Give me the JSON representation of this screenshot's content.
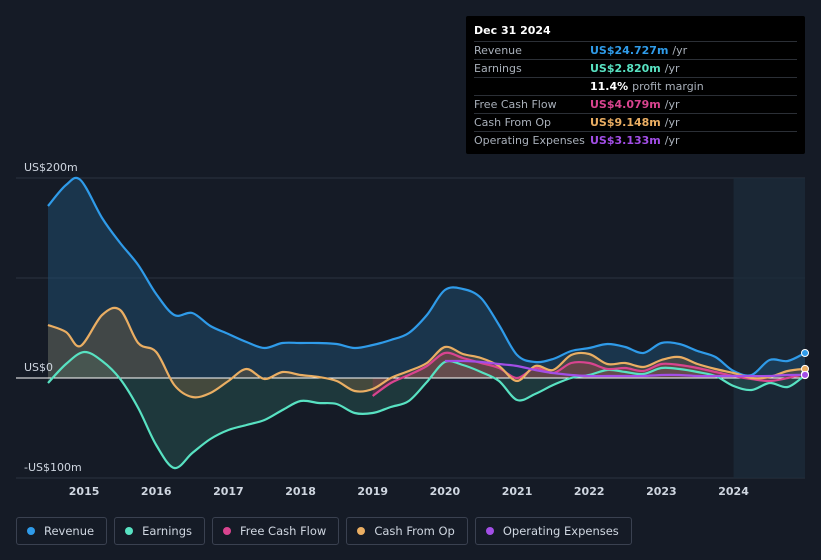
{
  "tooltip": {
    "date": "Dec 31 2024",
    "rows": [
      {
        "label": "Revenue",
        "value": "US$24.727m",
        "unit": "/yr",
        "color": "#2f9be9"
      },
      {
        "label": "Earnings",
        "value": "US$2.820m",
        "unit": "/yr",
        "color": "#58e2c2"
      },
      {
        "label": "",
        "value": "11.4%",
        "unit": "profit margin",
        "color": "#ffffff"
      },
      {
        "label": "Free Cash Flow",
        "value": "US$4.079m",
        "unit": "/yr",
        "color": "#d9448f"
      },
      {
        "label": "Cash From Op",
        "value": "US$9.148m",
        "unit": "/yr",
        "color": "#eaae63"
      },
      {
        "label": "Operating Expenses",
        "value": "US$3.133m",
        "unit": "/yr",
        "color": "#a24ee6"
      }
    ]
  },
  "legend": [
    {
      "label": "Revenue",
      "color": "#2f9be9"
    },
    {
      "label": "Earnings",
      "color": "#58e2c2"
    },
    {
      "label": "Free Cash Flow",
      "color": "#d9448f"
    },
    {
      "label": "Cash From Op",
      "color": "#eaae63"
    },
    {
      "label": "Operating Expenses",
      "color": "#a24ee6"
    }
  ],
  "chart_data": {
    "type": "area",
    "title": "",
    "xlabel": "",
    "ylabel": "",
    "xlim": [
      2014.5,
      2024.99
    ],
    "ylim": [
      -100,
      200
    ],
    "y_ticks": [
      {
        "value": 200,
        "label": "US$200m"
      },
      {
        "value": 0,
        "label": "US$0"
      },
      {
        "value": -100,
        "label": "-US$100m"
      }
    ],
    "x_ticks": [
      {
        "value": 2015,
        "label": "2015"
      },
      {
        "value": 2016,
        "label": "2016"
      },
      {
        "value": 2017,
        "label": "2017"
      },
      {
        "value": 2018,
        "label": "2018"
      },
      {
        "value": 2019,
        "label": "2019"
      },
      {
        "value": 2020,
        "label": "2020"
      },
      {
        "value": 2021,
        "label": "2021"
      },
      {
        "value": 2022,
        "label": "2022"
      },
      {
        "value": 2023,
        "label": "2023"
      },
      {
        "value": 2024,
        "label": "2024"
      }
    ],
    "highlight_from": 2024.0,
    "series": [
      {
        "name": "Revenue",
        "color": "#2f9be9",
        "fill": true,
        "points": [
          [
            2014.5,
            172
          ],
          [
            2014.75,
            193
          ],
          [
            2014.95,
            198
          ],
          [
            2015.25,
            160
          ],
          [
            2015.5,
            135
          ],
          [
            2015.75,
            113
          ],
          [
            2016.0,
            84
          ],
          [
            2016.25,
            63
          ],
          [
            2016.5,
            65
          ],
          [
            2016.75,
            52
          ],
          [
            2017.0,
            44
          ],
          [
            2017.25,
            36
          ],
          [
            2017.5,
            30
          ],
          [
            2017.75,
            35
          ],
          [
            2018.0,
            35
          ],
          [
            2018.25,
            35
          ],
          [
            2018.5,
            34
          ],
          [
            2018.75,
            30
          ],
          [
            2019.0,
            33
          ],
          [
            2019.25,
            38
          ],
          [
            2019.5,
            45
          ],
          [
            2019.75,
            63
          ],
          [
            2020.0,
            88
          ],
          [
            2020.25,
            89
          ],
          [
            2020.5,
            80
          ],
          [
            2020.75,
            53
          ],
          [
            2021.0,
            23
          ],
          [
            2021.25,
            16
          ],
          [
            2021.5,
            19
          ],
          [
            2021.75,
            27
          ],
          [
            2022.0,
            30
          ],
          [
            2022.25,
            34
          ],
          [
            2022.5,
            31
          ],
          [
            2022.75,
            25
          ],
          [
            2023.0,
            35
          ],
          [
            2023.25,
            34
          ],
          [
            2023.5,
            27
          ],
          [
            2023.75,
            21
          ],
          [
            2024.0,
            7
          ],
          [
            2024.25,
            3
          ],
          [
            2024.5,
            18
          ],
          [
            2024.75,
            17
          ],
          [
            2024.99,
            25
          ]
        ]
      },
      {
        "name": "Earnings",
        "color": "#58e2c2",
        "fill": true,
        "points": [
          [
            2014.5,
            -5
          ],
          [
            2014.75,
            14
          ],
          [
            2015.0,
            26
          ],
          [
            2015.25,
            17
          ],
          [
            2015.5,
            -1
          ],
          [
            2015.75,
            -30
          ],
          [
            2016.0,
            -67
          ],
          [
            2016.25,
            -90
          ],
          [
            2016.5,
            -75
          ],
          [
            2016.75,
            -61
          ],
          [
            2017.0,
            -52
          ],
          [
            2017.25,
            -47
          ],
          [
            2017.5,
            -42
          ],
          [
            2017.75,
            -32
          ],
          [
            2018.0,
            -23
          ],
          [
            2018.25,
            -25
          ],
          [
            2018.5,
            -26
          ],
          [
            2018.75,
            -35
          ],
          [
            2019.0,
            -35
          ],
          [
            2019.25,
            -29
          ],
          [
            2019.5,
            -23
          ],
          [
            2019.75,
            -4
          ],
          [
            2020.0,
            16
          ],
          [
            2020.25,
            13
          ],
          [
            2020.5,
            6
          ],
          [
            2020.75,
            -3
          ],
          [
            2021.0,
            -22
          ],
          [
            2021.25,
            -16
          ],
          [
            2021.5,
            -7
          ],
          [
            2021.75,
            0
          ],
          [
            2022.0,
            3
          ],
          [
            2022.25,
            8
          ],
          [
            2022.5,
            6
          ],
          [
            2022.75,
            4
          ],
          [
            2023.0,
            10
          ],
          [
            2023.25,
            9
          ],
          [
            2023.5,
            6
          ],
          [
            2023.75,
            2
          ],
          [
            2024.0,
            -8
          ],
          [
            2024.25,
            -12
          ],
          [
            2024.5,
            -5
          ],
          [
            2024.75,
            -9
          ],
          [
            2024.99,
            2.82
          ]
        ]
      },
      {
        "name": "Free Cash Flow",
        "color": "#d9448f",
        "fill": true,
        "points": [
          [
            2019.0,
            -18
          ],
          [
            2019.25,
            -5
          ],
          [
            2019.5,
            3
          ],
          [
            2019.75,
            12
          ],
          [
            2020.0,
            25
          ],
          [
            2020.25,
            20
          ],
          [
            2020.5,
            15
          ],
          [
            2020.75,
            10
          ],
          [
            2021.0,
            0
          ],
          [
            2021.25,
            10
          ],
          [
            2021.5,
            5
          ],
          [
            2021.75,
            15
          ],
          [
            2022.0,
            15
          ],
          [
            2022.25,
            9
          ],
          [
            2022.5,
            10
          ],
          [
            2022.75,
            7
          ],
          [
            2023.0,
            14
          ],
          [
            2023.25,
            13
          ],
          [
            2023.5,
            10
          ],
          [
            2023.75,
            6
          ],
          [
            2024.0,
            2
          ],
          [
            2024.25,
            -1
          ],
          [
            2024.5,
            -3
          ],
          [
            2024.75,
            0
          ],
          [
            2024.99,
            4.08
          ]
        ]
      },
      {
        "name": "Cash From Op",
        "color": "#eaae63",
        "fill": true,
        "points": [
          [
            2014.5,
            53
          ],
          [
            2014.75,
            46
          ],
          [
            2014.95,
            32
          ],
          [
            2015.25,
            63
          ],
          [
            2015.5,
            68
          ],
          [
            2015.75,
            35
          ],
          [
            2016.0,
            26
          ],
          [
            2016.25,
            -7
          ],
          [
            2016.5,
            -19
          ],
          [
            2016.75,
            -15
          ],
          [
            2017.0,
            -3
          ],
          [
            2017.25,
            9
          ],
          [
            2017.5,
            -1
          ],
          [
            2017.75,
            6
          ],
          [
            2018.0,
            3
          ],
          [
            2018.25,
            1
          ],
          [
            2018.5,
            -3
          ],
          [
            2018.75,
            -13
          ],
          [
            2019.0,
            -11
          ],
          [
            2019.25,
            0
          ],
          [
            2019.5,
            7
          ],
          [
            2019.75,
            15
          ],
          [
            2020.0,
            31
          ],
          [
            2020.25,
            24
          ],
          [
            2020.5,
            20
          ],
          [
            2020.75,
            12
          ],
          [
            2021.0,
            -3
          ],
          [
            2021.25,
            12
          ],
          [
            2021.5,
            8
          ],
          [
            2021.75,
            23
          ],
          [
            2022.0,
            24
          ],
          [
            2022.25,
            14
          ],
          [
            2022.5,
            15
          ],
          [
            2022.75,
            11
          ],
          [
            2023.0,
            18
          ],
          [
            2023.25,
            21
          ],
          [
            2023.5,
            14
          ],
          [
            2023.75,
            9
          ],
          [
            2024.0,
            5
          ],
          [
            2024.25,
            0
          ],
          [
            2024.5,
            1
          ],
          [
            2024.75,
            7
          ],
          [
            2024.99,
            9.15
          ]
        ]
      },
      {
        "name": "Operating Expenses",
        "color": "#a24ee6",
        "fill": false,
        "points": [
          [
            2020.0,
            17
          ],
          [
            2020.25,
            17
          ],
          [
            2020.5,
            16
          ],
          [
            2020.75,
            14
          ],
          [
            2021.0,
            12
          ],
          [
            2021.25,
            8
          ],
          [
            2021.5,
            5
          ],
          [
            2021.75,
            3
          ],
          [
            2022.0,
            2
          ],
          [
            2022.25,
            2
          ],
          [
            2022.5,
            2
          ],
          [
            2022.75,
            2
          ],
          [
            2023.0,
            3
          ],
          [
            2023.25,
            3
          ],
          [
            2023.5,
            2
          ],
          [
            2023.75,
            2
          ],
          [
            2024.0,
            2
          ],
          [
            2024.25,
            2
          ],
          [
            2024.5,
            2
          ],
          [
            2024.75,
            3
          ],
          [
            2024.99,
            3.13
          ]
        ]
      }
    ]
  }
}
